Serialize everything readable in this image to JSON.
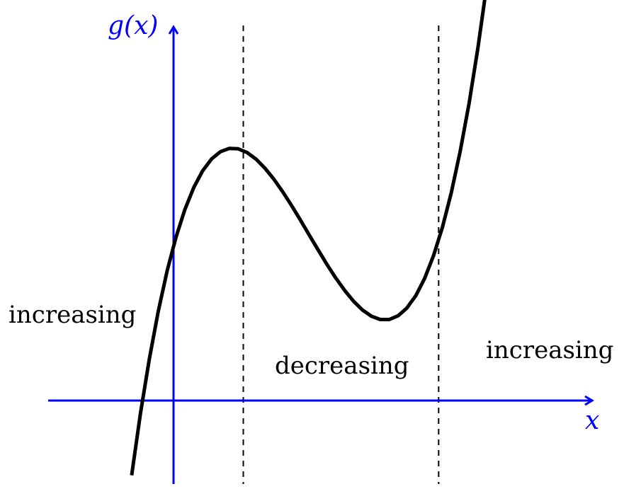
{
  "colors": {
    "axis": "#0000ff",
    "curve": "#000000",
    "guide": "#000000",
    "label": "#000000",
    "background": "#ffffff"
  },
  "axes": {
    "x_label": "x",
    "y_label": "g(x)"
  },
  "curve": {
    "description_type": "cubic function with local max and local min",
    "x_range": [
      -0.6,
      5
    ]
  },
  "critical_points": {
    "local_max_x": 1,
    "local_min_x": 3.8
  },
  "region_labels": {
    "left": "increasing",
    "middle": "decreasing",
    "right": "increasing"
  }
}
